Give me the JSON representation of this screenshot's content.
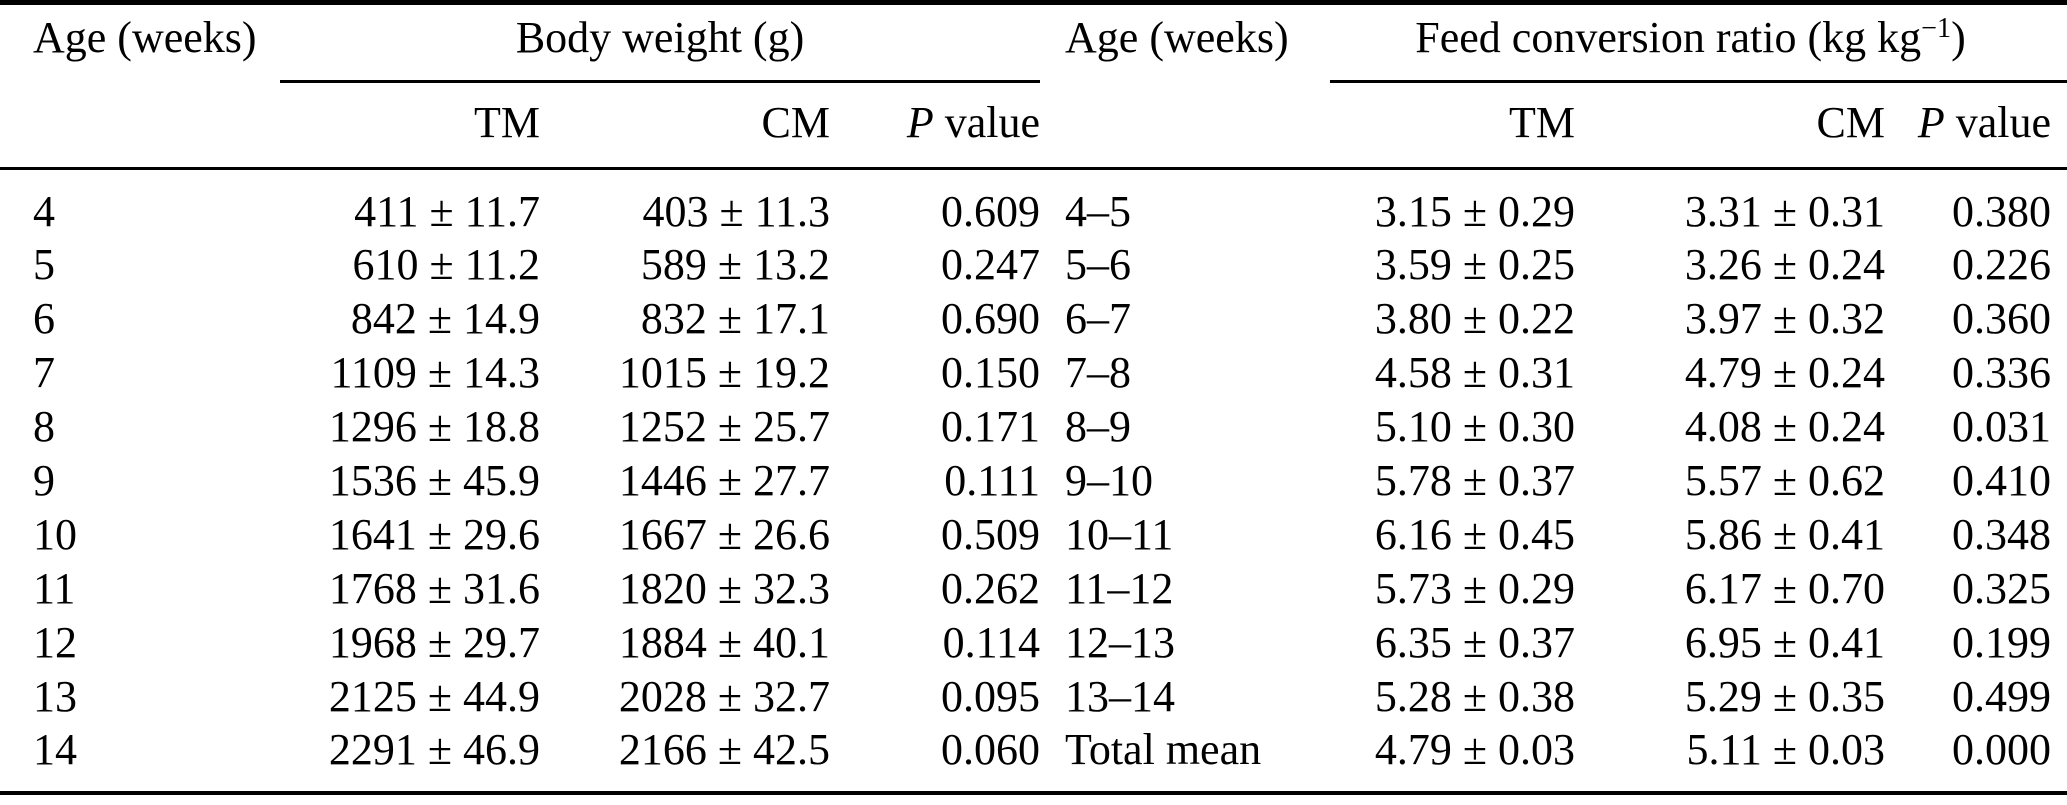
{
  "page": {
    "background": "#ffffff",
    "text_color": "#000000"
  },
  "table": {
    "headers": {
      "age_left": "Age (weeks)",
      "age_right": "Age (weeks)",
      "body_weight_group": "Body weight (g)",
      "fcr_group_prefix": "Feed conversion ratio (kg kg",
      "fcr_group_sup": "−1",
      "fcr_group_suffix": ")",
      "tm": "TM",
      "cm": "CM",
      "p_italic": "P",
      "p_rest": "value"
    },
    "rows": [
      [
        "4",
        "411 ± 11.7",
        "403 ± 11.3",
        "0.609",
        "4–5",
        "3.15 ± 0.29",
        "3.31 ± 0.31",
        "0.380"
      ],
      [
        "5",
        "610 ± 11.2",
        "589 ± 13.2",
        "0.247",
        "5–6",
        "3.59 ± 0.25",
        "3.26 ± 0.24",
        "0.226"
      ],
      [
        "6",
        "842 ± 14.9",
        "832 ± 17.1",
        "0.690",
        "6–7",
        "3.80 ± 0.22",
        "3.97 ± 0.32",
        "0.360"
      ],
      [
        "7",
        "1109 ± 14.3",
        "1015 ± 19.2",
        "0.150",
        "7–8",
        "4.58 ± 0.31",
        "4.79 ± 0.24",
        "0.336"
      ],
      [
        "8",
        "1296 ± 18.8",
        "1252 ± 25.7",
        "0.171",
        "8–9",
        "5.10 ± 0.30",
        "4.08 ± 0.24",
        "0.031"
      ],
      [
        "9",
        "1536 ± 45.9",
        "1446 ± 27.7",
        "0.111",
        "9–10",
        "5.78 ± 0.37",
        "5.57 ± 0.62",
        "0.410"
      ],
      [
        "10",
        "1641 ± 29.6",
        "1667 ± 26.6",
        "0.509",
        "10–11",
        "6.16 ± 0.45",
        "5.86 ± 0.41",
        "0.348"
      ],
      [
        "11",
        "1768 ± 31.6",
        "1820 ± 32.3",
        "0.262",
        "11–12",
        "5.73 ± 0.29",
        "6.17 ± 0.70",
        "0.325"
      ],
      [
        "12",
        "1968 ± 29.7",
        "1884 ± 40.1",
        "0.114",
        "12–13",
        "6.35 ± 0.37",
        "6.95 ± 0.41",
        "0.199"
      ],
      [
        "13",
        "2125 ± 44.9",
        "2028 ± 32.7",
        "0.095",
        "13–14",
        "5.28 ± 0.38",
        "5.29 ± 0.35",
        "0.499"
      ],
      [
        "14",
        "2291 ± 46.9",
        "2166 ± 42.5",
        "0.060",
        "Total mean",
        "4.79 ± 0.03",
        "5.11 ± 0.03",
        "0.000"
      ]
    ]
  }
}
